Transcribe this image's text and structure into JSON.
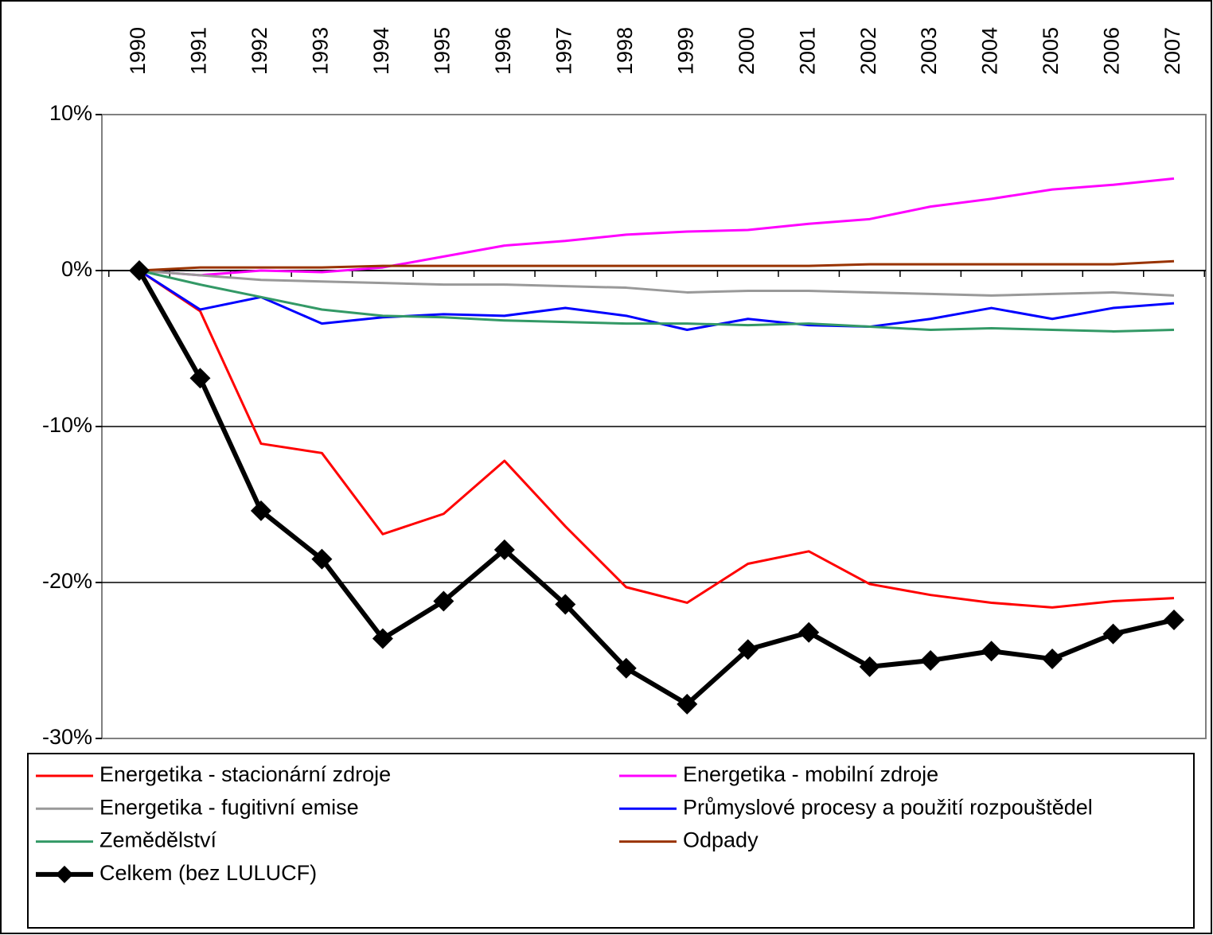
{
  "chart_data": {
    "type": "line",
    "categories": [
      "1990",
      "1991",
      "1992",
      "1993",
      "1994",
      "1995",
      "1996",
      "1997",
      "1998",
      "1999",
      "2000",
      "2001",
      "2002",
      "2003",
      "2004",
      "2005",
      "2006",
      "2007"
    ],
    "ylim": [
      -30,
      10
    ],
    "yticks": [
      {
        "value": -30,
        "label": "-30%"
      },
      {
        "value": -20,
        "label": "-20%"
      },
      {
        "value": -10,
        "label": "-10%"
      },
      {
        "value": 0,
        "label": "0%"
      },
      {
        "value": 10,
        "label": "10%"
      }
    ],
    "grid": true,
    "legend": "bottom",
    "series": [
      {
        "name": "Energetika - stacionární zdroje",
        "color": "#ff0000",
        "values": [
          0,
          -2.6,
          -11.1,
          -11.7,
          -16.9,
          -15.6,
          -12.2,
          -16.4,
          -20.3,
          -21.3,
          -18.8,
          -18.0,
          -20.1,
          -20.8,
          -21.3,
          -21.6,
          -21.2,
          -21.0
        ]
      },
      {
        "name": "Energetika - mobilní zdroje",
        "color": "#ff00ff",
        "values": [
          0,
          -0.3,
          0,
          -0.1,
          0.2,
          0.9,
          1.6,
          1.9,
          2.3,
          2.5,
          2.6,
          3.0,
          3.3,
          4.1,
          4.6,
          5.2,
          5.5,
          5.9
        ]
      },
      {
        "name": "Energetika - fugitivní emise",
        "color": "#999999",
        "values": [
          0,
          -0.3,
          -0.6,
          -0.7,
          -0.8,
          -0.9,
          -0.9,
          -1.0,
          -1.1,
          -1.4,
          -1.3,
          -1.3,
          -1.4,
          -1.5,
          -1.6,
          -1.5,
          -1.4,
          -1.6
        ]
      },
      {
        "name": "Průmyslové procesy a použití rozpouštědel",
        "color": "#0000ff",
        "values": [
          0,
          -2.5,
          -1.7,
          -3.4,
          -3.0,
          -2.8,
          -2.9,
          -2.4,
          -2.9,
          -3.8,
          -3.1,
          -3.5,
          -3.6,
          -3.1,
          -2.4,
          -3.1,
          -2.4,
          -2.1
        ]
      },
      {
        "name": "Zemědělství",
        "color": "#339966",
        "values": [
          0,
          -0.9,
          -1.7,
          -2.5,
          -2.9,
          -3.0,
          -3.2,
          -3.3,
          -3.4,
          -3.4,
          -3.5,
          -3.4,
          -3.6,
          -3.8,
          -3.7,
          -3.8,
          -3.9,
          -3.8
        ]
      },
      {
        "name": "Odpady",
        "color": "#993300",
        "values": [
          0,
          0.2,
          0.2,
          0.2,
          0.3,
          0.3,
          0.3,
          0.3,
          0.3,
          0.3,
          0.3,
          0.3,
          0.4,
          0.4,
          0.4,
          0.4,
          0.4,
          0.6
        ]
      },
      {
        "name": "Celkem (bez LULUCF)",
        "color": "#000000",
        "marker": "diamond",
        "values": [
          0,
          -6.9,
          -15.4,
          -18.5,
          -23.6,
          -21.2,
          -17.9,
          -21.4,
          -25.5,
          -27.8,
          -24.3,
          -23.2,
          -25.4,
          -25.0,
          -24.4,
          -24.9,
          -23.3,
          -22.4
        ]
      }
    ]
  }
}
